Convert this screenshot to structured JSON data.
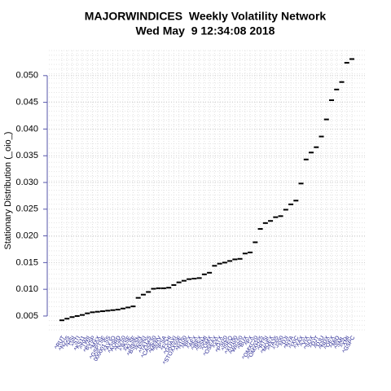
{
  "chart_data": {
    "type": "scatter",
    "title": "MAJORWINDICES  Weekly Volatility Network",
    "subtitle": "Wed May  9 12:34:08 2018",
    "y_label": "Stationary Distribution (_oio_)",
    "categories": [
      "^RUT",
      "^N225",
      "^HSI",
      "^STI",
      "^KS11",
      "^TWII",
      "^BVSP",
      "^MXX",
      "^GSPTSE",
      "000001.SS",
      "^AXJO",
      "^AORD",
      "^NZ50",
      "^JKSE",
      "^KLSE",
      "^BSESN",
      "^NSEI",
      "^TA125",
      "^CASE30",
      "^MERV",
      "^IPSA",
      "^FCHI",
      "^GDAXI",
      "^STOXX50E",
      "^N100",
      "^BFX",
      "^AEX",
      "^IBEX",
      "^SSMI",
      "^OMX",
      "^OSEAX",
      "^ATX",
      "^PSI20",
      "^ISEQ",
      "^XU100",
      "^WIG20",
      "^BUX",
      "^PX",
      "^OMXC20",
      "^OMXH25",
      "^RTSI",
      "^MOEX",
      "^TA35",
      "^J200",
      "^DJI",
      "^NYA",
      "^IXIC",
      "^XAX",
      "^VIX",
      "^SOX",
      "^DJT",
      "^DJU",
      "^NDX",
      "^OEX",
      "^MID",
      "^SML",
      "^XMI",
      "^GSPC"
    ],
    "values": [
      0.0042,
      0.0045,
      0.0048,
      0.005,
      0.0052,
      0.0055,
      0.0057,
      0.0058,
      0.0059,
      0.006,
      0.0061,
      0.0062,
      0.0064,
      0.0066,
      0.0068,
      0.0084,
      0.009,
      0.0095,
      0.0101,
      0.0102,
      0.0102,
      0.0103,
      0.0108,
      0.0113,
      0.0116,
      0.0119,
      0.012,
      0.0121,
      0.0128,
      0.0131,
      0.0144,
      0.0148,
      0.015,
      0.0153,
      0.0156,
      0.0157,
      0.0167,
      0.0169,
      0.0188,
      0.0213,
      0.0224,
      0.0228,
      0.0235,
      0.0237,
      0.0249,
      0.0259,
      0.0266,
      0.0298,
      0.0343,
      0.0356,
      0.0366,
      0.0386,
      0.0418,
      0.0454,
      0.0474,
      0.0488,
      0.0524,
      0.0531
    ],
    "color": "#000000",
    "label_color": "#1a1a8c",
    "ylim": [
      0.0024,
      0.0547
    ],
    "yticks": [
      0.005,
      {
        "value": 0.01,
        "label": "0.010"
      },
      0.015,
      {
        "value": 0.02,
        "label": "0.020"
      },
      0.025,
      {
        "value": 0.03,
        "label": "0.030"
      },
      0.035,
      {
        "value": 0.04,
        "label": "0.040"
      },
      0.045,
      {
        "value": 0.05,
        "label": "0.050"
      }
    ],
    "grid": true
  }
}
